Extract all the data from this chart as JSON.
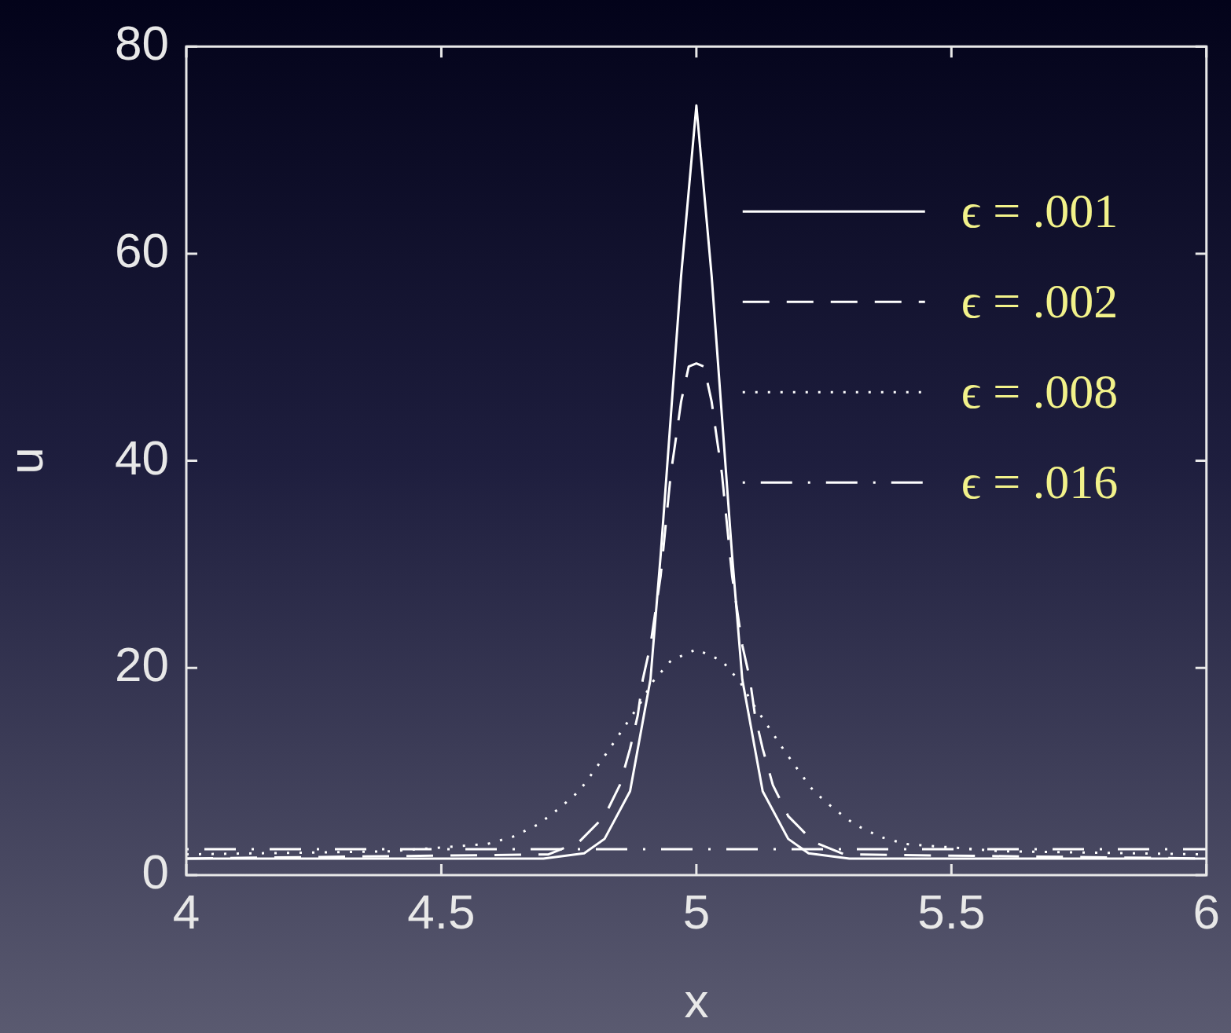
{
  "chart_data": {
    "type": "line",
    "xlabel": "x",
    "ylabel": "u",
    "xlim": [
      4,
      6
    ],
    "xticks": [
      4,
      4.5,
      5,
      5.5,
      6
    ],
    "ylim": [
      0,
      80
    ],
    "yticks": [
      0,
      20,
      40,
      60,
      80
    ],
    "grid": false,
    "legend": "top right",
    "marker": "none",
    "series": [
      {
        "name": "ϵ = .001",
        "color": "#ffffff",
        "line_style": "solid",
        "x": [
          4,
          4.7,
          4.78,
          4.82,
          4.87,
          4.91,
          4.93,
          4.97,
          5,
          5.03,
          5.07,
          5.09,
          5.13,
          5.18,
          5.22,
          5.3,
          6
        ],
        "values": [
          1.6,
          1.6,
          2.1,
          3.5,
          8.1,
          18.9,
          30.9,
          57.8,
          74.3,
          57.8,
          30.9,
          18.9,
          8.1,
          3.5,
          2.1,
          1.6,
          1.6
        ]
      },
      {
        "name": "ϵ = .002",
        "color": "#ffffff",
        "line_style": "dashed",
        "x": [
          4,
          4.71,
          4.77,
          4.82,
          4.85,
          4.87,
          4.885,
          4.895,
          4.91,
          4.93,
          4.95,
          4.96,
          4.97,
          4.985,
          5,
          5.015,
          5.03,
          5.04,
          5.05,
          5.07,
          5.09,
          5.105,
          5.115,
          5.13,
          5.15,
          5.18,
          5.23,
          5.29,
          6
        ],
        "values": [
          1.6,
          2.0,
          3.2,
          5.7,
          8.7,
          12.2,
          15.4,
          18.9,
          22.2,
          28.9,
          38.8,
          42.2,
          45.7,
          49.1,
          49.4,
          49.1,
          45.7,
          42.2,
          38.8,
          28.9,
          22.2,
          18.9,
          15.4,
          12.2,
          8.7,
          5.7,
          3.2,
          2.0,
          1.6
        ]
      },
      {
        "name": "ϵ = .008",
        "color": "#ffffff",
        "line_style": "dotted",
        "x": [
          4,
          4.4,
          4.59,
          4.64,
          4.69,
          4.73,
          4.77,
          4.8,
          4.83,
          4.86,
          4.89,
          4.915,
          4.95,
          5,
          5.05,
          5.085,
          5.11,
          5.14,
          5.17,
          5.2,
          5.23,
          5.27,
          5.31,
          5.36,
          5.41,
          5.6,
          6
        ],
        "values": [
          2.0,
          2.3,
          3.0,
          3.7,
          4.9,
          6.4,
          8.1,
          10.1,
          12.2,
          14.4,
          16.6,
          18.7,
          20.7,
          21.8,
          20.7,
          18.7,
          16.6,
          14.4,
          12.2,
          10.1,
          8.1,
          6.4,
          4.9,
          3.7,
          3.0,
          2.3,
          2.0
        ]
      },
      {
        "name": "ϵ = .016",
        "color": "#ffffff",
        "line_style": "dashdot",
        "x": [
          4,
          5,
          6
        ],
        "values": [
          2.5,
          2.5,
          2.5
        ]
      }
    ]
  }
}
